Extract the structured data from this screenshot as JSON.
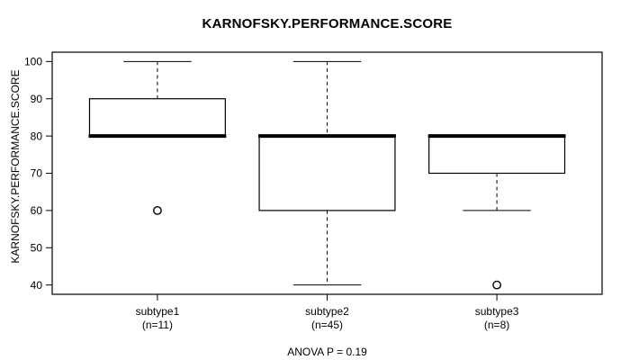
{
  "colors": {
    "foreground": "#000000",
    "background": "#ffffff",
    "box_fill": "#ffffff"
  },
  "chart_data": {
    "type": "boxplot",
    "title": "KARNOFSKY.PERFORMANCE.SCORE",
    "ylabel": "KARNOFSKY.PERFORMANCE.SCORE",
    "xlabel": "",
    "annotation": "ANOVA P = 0.19",
    "yticks": [
      40,
      50,
      60,
      70,
      80,
      90,
      100
    ],
    "ylim": [
      37.5,
      102.5
    ],
    "xlim": [
      0.38,
      3.62
    ],
    "x_positions": [
      1,
      2,
      3
    ],
    "box_halfwidth": 0.4,
    "cap_halfwidth": 0.2,
    "grid": false,
    "legend": null,
    "groups": [
      {
        "label": "subtype1",
        "sublabel": "(n=11)",
        "n": 11,
        "q1": 80,
        "median": 80,
        "q3": 90,
        "whisker_low": 80,
        "whisker_high": 100,
        "outliers": [
          60
        ]
      },
      {
        "label": "subtype2",
        "sublabel": "(n=45)",
        "n": 45,
        "q1": 60,
        "median": 80,
        "q3": 80,
        "whisker_low": 40,
        "whisker_high": 100,
        "outliers": []
      },
      {
        "label": "subtype3",
        "sublabel": "(n=8)",
        "n": 8,
        "q1": 70,
        "median": 80,
        "q3": 80,
        "whisker_low": 60,
        "whisker_high": 80,
        "outliers": [
          40
        ]
      }
    ]
  }
}
